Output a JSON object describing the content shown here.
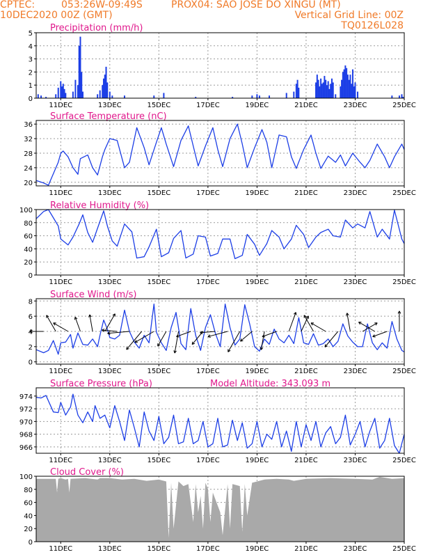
{
  "header": {
    "line1_left": "CPTEC:",
    "coords": "053:26W-09:49S",
    "location": "PROX04: SAO JOSE DO XINGU (MT)",
    "datetime": "10DEC2020 00Z (GMT)",
    "grid_note": "Vertical Grid Line: 00Z",
    "code": "TQ0126L028"
  },
  "colors": {
    "header": "#f07a28",
    "title": "#e0188c",
    "series": "#1c3ee6",
    "cloud": "#a9a9a9",
    "grid": "#9a9a9a"
  },
  "x_axis": {
    "ticks": [
      "11DEC",
      "13DEC",
      "15DEC",
      "17DEC",
      "19DEC",
      "21DEC",
      "23DEC",
      "25DEC"
    ],
    "tick_days": [
      11,
      13,
      15,
      17,
      19,
      21,
      23,
      25
    ],
    "range_days": [
      10,
      25
    ]
  },
  "chart_data": [
    {
      "id": "precip",
      "type": "bar",
      "title": "Precipitation (mm/h)",
      "ylim": [
        0,
        5
      ],
      "yticks": [
        0,
        1,
        2,
        3,
        4,
        5
      ],
      "grid": true,
      "x": [
        10.08,
        10.2,
        10.4,
        10.8,
        10.9,
        11.0,
        11.05,
        11.1,
        11.15,
        11.2,
        11.5,
        11.6,
        11.7,
        11.75,
        11.8,
        11.85,
        11.9,
        12.5,
        12.6,
        12.7,
        12.75,
        12.8,
        12.85,
        12.9,
        13.0,
        13.1,
        13.6,
        14.8,
        15.2,
        16.5,
        18.0,
        18.8,
        19.0,
        19.1,
        19.5,
        20.2,
        20.5,
        20.6,
        20.65,
        20.7,
        21.4,
        21.45,
        21.5,
        21.55,
        21.6,
        21.65,
        21.7,
        21.75,
        21.8,
        21.85,
        21.9,
        21.95,
        22.0,
        22.05,
        22.1,
        22.2,
        22.4,
        22.45,
        22.5,
        22.55,
        22.6,
        22.65,
        22.7,
        22.75,
        22.8,
        22.85,
        22.9,
        22.95,
        23.0,
        23.1,
        24.5,
        24.8,
        24.9,
        24.95
      ],
      "values": [
        0.3,
        0.2,
        0.1,
        0.3,
        0.8,
        1.3,
        0.9,
        1.1,
        0.7,
        0.4,
        0.5,
        1.4,
        1.0,
        4.0,
        4.7,
        2.0,
        0.5,
        0.3,
        0.6,
        1.0,
        1.5,
        1.8,
        2.4,
        1.2,
        0.5,
        0.2,
        0.2,
        0.2,
        0.4,
        0.1,
        0.1,
        0.2,
        0.3,
        0.2,
        0.2,
        0.4,
        0.5,
        1.1,
        1.4,
        0.8,
        1.2,
        1.8,
        1.4,
        0.9,
        1.5,
        1.1,
        1.2,
        1.7,
        1.4,
        1.0,
        1.3,
        0.7,
        1.1,
        1.5,
        1.2,
        0.3,
        0.9,
        1.4,
        2.0,
        2.2,
        2.5,
        2.3,
        1.8,
        1.4,
        1.8,
        1.1,
        2.2,
        0.9,
        1.2,
        0.5,
        0.2,
        0.2,
        0.3,
        0.1
      ]
    },
    {
      "id": "temp",
      "type": "line",
      "title": "Surface Temperature (nC)",
      "ylim": [
        19,
        37
      ],
      "yticks": [
        20,
        24,
        28,
        32,
        36
      ],
      "grid": true,
      "x": [
        10.0,
        10.3,
        10.5,
        10.9,
        11.0,
        11.1,
        11.3,
        11.5,
        11.7,
        11.75,
        11.8,
        12.1,
        12.3,
        12.5,
        12.7,
        12.8,
        13.0,
        13.3,
        13.6,
        13.8,
        14.1,
        14.4,
        14.6,
        14.9,
        15.1,
        15.3,
        15.6,
        15.9,
        16.2,
        16.4,
        16.6,
        16.9,
        17.2,
        17.4,
        17.6,
        17.9,
        18.2,
        18.4,
        18.6,
        18.9,
        19.2,
        19.4,
        19.6,
        19.9,
        20.2,
        20.4,
        20.6,
        20.9,
        21.2,
        21.4,
        21.6,
        21.9,
        22.2,
        22.4,
        22.6,
        22.9,
        23.2,
        23.4,
        23.6,
        23.9,
        24.2,
        24.4,
        24.6,
        24.9,
        25.0
      ],
      "values": [
        20.5,
        19.8,
        19.2,
        25.5,
        28.0,
        28.6,
        27.0,
        24.0,
        22.2,
        24.5,
        26.5,
        27.5,
        24.0,
        22.0,
        27.0,
        29.0,
        32.0,
        31.5,
        24.0,
        25.5,
        35.0,
        29.5,
        24.8,
        31.0,
        35.0,
        30.5,
        24.3,
        31.5,
        35.5,
        30.0,
        24.5,
        30.0,
        35.0,
        29.0,
        24.3,
        32.0,
        36.0,
        30.5,
        24.0,
        29.5,
        34.5,
        31.0,
        24.0,
        33.0,
        32.5,
        27.0,
        23.8,
        29.0,
        33.0,
        28.0,
        23.8,
        27.2,
        25.5,
        27.5,
        24.5,
        28.0,
        25.5,
        24.0,
        26.0,
        30.5,
        27.0,
        24.0,
        27.0,
        30.5,
        29.0
      ]
    },
    {
      "id": "rh",
      "type": "line",
      "title": "Relative Humidity (%)",
      "ylim": [
        0,
        100
      ],
      "yticks": [
        0,
        20,
        40,
        60,
        80,
        100
      ],
      "grid": true,
      "x": [
        10.0,
        10.3,
        10.5,
        10.9,
        11.0,
        11.3,
        11.5,
        11.75,
        11.9,
        12.1,
        12.3,
        12.6,
        12.75,
        12.9,
        13.1,
        13.3,
        13.6,
        13.9,
        14.1,
        14.4,
        14.6,
        14.9,
        15.1,
        15.4,
        15.6,
        15.9,
        16.1,
        16.4,
        16.6,
        16.9,
        17.1,
        17.4,
        17.6,
        17.9,
        18.1,
        18.4,
        18.6,
        18.9,
        19.1,
        19.4,
        19.6,
        19.9,
        20.1,
        20.4,
        20.6,
        20.9,
        21.1,
        21.4,
        21.6,
        21.9,
        22.1,
        22.4,
        22.6,
        22.9,
        23.1,
        23.4,
        23.6,
        23.9,
        24.1,
        24.4,
        24.6,
        24.9,
        25.0
      ],
      "values": [
        86,
        97,
        100,
        75,
        55,
        46,
        58,
        78,
        92,
        65,
        50,
        82,
        98,
        75,
        52,
        44,
        78,
        66,
        26,
        28,
        43,
        70,
        28,
        34,
        56,
        68,
        26,
        32,
        60,
        58,
        29,
        33,
        55,
        55,
        25,
        30,
        62,
        47,
        30,
        48,
        68,
        58,
        40,
        55,
        76,
        62,
        42,
        58,
        65,
        70,
        60,
        58,
        84,
        72,
        78,
        72,
        97,
        58,
        70,
        55,
        99,
        55,
        48
      ]
    },
    {
      "id": "wind",
      "type": "line",
      "title": "Surface Wind (m/s)",
      "ylim": [
        -0.3,
        8.3
      ],
      "yticks": [
        0,
        2,
        4,
        6,
        8
      ],
      "grid": true,
      "x": [
        10.0,
        10.3,
        10.5,
        10.7,
        10.9,
        11.0,
        11.2,
        11.4,
        11.5,
        11.7,
        11.9,
        12.1,
        12.3,
        12.5,
        12.6,
        12.75,
        12.9,
        13.0,
        13.2,
        13.4,
        13.6,
        13.8,
        14.0,
        14.2,
        14.4,
        14.6,
        14.8,
        14.9,
        15.1,
        15.3,
        15.5,
        15.7,
        15.9,
        16.1,
        16.3,
        16.5,
        16.7,
        16.9,
        17.1,
        17.3,
        17.5,
        17.7,
        17.9,
        18.1,
        18.3,
        18.5,
        18.7,
        18.9,
        19.1,
        19.3,
        19.5,
        19.7,
        19.9,
        20.1,
        20.3,
        20.5,
        20.7,
        20.9,
        21.1,
        21.3,
        21.5,
        21.7,
        21.9,
        22.1,
        22.3,
        22.5,
        22.7,
        22.9,
        23.1,
        23.3,
        23.5,
        23.7,
        23.9,
        24.1,
        24.3,
        24.5,
        24.7,
        24.9,
        25.0
      ],
      "values": [
        1.6,
        1.2,
        1.5,
        2.8,
        1.0,
        2.5,
        2.6,
        3.6,
        1.8,
        3.8,
        2.3,
        2.2,
        3.0,
        2.0,
        3.5,
        5.5,
        4.3,
        3.2,
        3.0,
        3.5,
        6.8,
        4.0,
        2.6,
        1.8,
        3.5,
        2.5,
        7.6,
        3.9,
        2.5,
        1.5,
        4.5,
        6.5,
        2.4,
        1.6,
        7.0,
        3.5,
        1.5,
        4.5,
        6.2,
        3.8,
        2.0,
        7.6,
        4.5,
        2.2,
        3.0,
        7.5,
        5.0,
        2.0,
        1.4,
        3.0,
        2.3,
        4.3,
        3.0,
        2.5,
        3.5,
        2.4,
        5.8,
        2.5,
        2.3,
        3.7,
        2.2,
        2.4,
        3.0,
        2.0,
        2.7,
        5.0,
        3.4,
        2.6,
        2.0,
        2.0,
        5.0,
        2.5,
        1.6,
        2.5,
        1.8,
        5.3,
        3.0,
        1.5,
        1.3
      ],
      "arrow_times": [
        10.3,
        10.8,
        11.3,
        11.8,
        12.3,
        12.8,
        13.3,
        13.8,
        14.3,
        14.8,
        15.3,
        15.8,
        16.3,
        16.8,
        17.3,
        17.8,
        18.3,
        18.8,
        19.3,
        19.8,
        20.3,
        20.8,
        21.3,
        21.8,
        22.3,
        22.8,
        23.3,
        23.8,
        24.3,
        24.8
      ],
      "arrow_dirs_deg": [
        180,
        120,
        150,
        110,
        100,
        60,
        175,
        185,
        230,
        210,
        240,
        260,
        200,
        230,
        185,
        195,
        240,
        220,
        260,
        200,
        70,
        65,
        120,
        150,
        230,
        100,
        30,
        150,
        200,
        90
      ],
      "arrow_lengths": [
        0.4,
        0.7,
        0.6,
        0.5,
        0.6,
        0.8,
        0.5,
        0.9,
        1.0,
        0.9,
        0.6,
        0.9,
        0.5,
        0.6,
        0.5,
        0.8,
        1.0,
        0.5,
        0.7,
        0.5,
        0.8,
        0.6,
        0.7,
        0.6,
        0.8,
        0.7,
        0.6,
        0.7,
        0.5,
        0.8
      ]
    },
    {
      "id": "press",
      "type": "line",
      "title": "Surface Pressure (hPa)",
      "annotation": "Model Altitude: 343.093 m",
      "ylim": [
        965.0,
        975.3
      ],
      "yticks": [
        966,
        968,
        970,
        972,
        974
      ],
      "grid": true,
      "x": [
        10.0,
        10.2,
        10.4,
        10.7,
        10.9,
        11.0,
        11.2,
        11.4,
        11.5,
        11.7,
        11.9,
        12.1,
        12.3,
        12.4,
        12.6,
        12.8,
        13.0,
        13.2,
        13.4,
        13.6,
        13.8,
        14.0,
        14.2,
        14.4,
        14.6,
        14.8,
        15.0,
        15.2,
        15.4,
        15.6,
        15.8,
        16.0,
        16.2,
        16.4,
        16.6,
        16.8,
        17.0,
        17.2,
        17.4,
        17.6,
        17.8,
        18.0,
        18.2,
        18.4,
        18.6,
        18.8,
        19.0,
        19.2,
        19.4,
        19.6,
        19.8,
        20.0,
        20.2,
        20.4,
        20.6,
        20.8,
        21.0,
        21.2,
        21.4,
        21.6,
        21.8,
        22.0,
        22.2,
        22.4,
        22.6,
        22.8,
        23.0,
        23.2,
        23.4,
        23.6,
        23.8,
        24.0,
        24.2,
        24.4,
        24.6,
        24.8,
        25.0
      ],
      "values": [
        973.8,
        973.7,
        974.1,
        971.5,
        971.4,
        973.0,
        971.0,
        972.3,
        974.3,
        971.0,
        969.8,
        971.5,
        970.0,
        972.5,
        970.5,
        971.0,
        969.0,
        972.5,
        970.0,
        967.0,
        971.8,
        969.0,
        966.0,
        971.5,
        968.5,
        967.0,
        970.8,
        966.5,
        967.5,
        971.0,
        966.5,
        966.8,
        970.5,
        966.5,
        967.0,
        970.0,
        966.0,
        966.5,
        970.5,
        966.0,
        966.3,
        970.2,
        967.0,
        969.8,
        965.8,
        966.5,
        970.0,
        966.0,
        968.0,
        967.2,
        970.0,
        966.0,
        968.5,
        965.3,
        970.0,
        966.0,
        969.5,
        967.0,
        970.0,
        966.0,
        968.2,
        969.2,
        966.5,
        967.5,
        971.0,
        966.3,
        968.0,
        970.0,
        966.0,
        968.5,
        970.5,
        965.8,
        967.0,
        970.5,
        966.2,
        965.0,
        968.0
      ]
    },
    {
      "id": "cloud",
      "type": "area",
      "title": "Cloud Cover (%)",
      "ylim": [
        0,
        100
      ],
      "yticks": [
        0,
        20,
        40,
        60,
        80,
        100
      ],
      "grid": true,
      "x": [
        10.0,
        10.8,
        10.85,
        10.9,
        11.0,
        11.2,
        11.3,
        11.35,
        11.4,
        12.0,
        12.5,
        12.6,
        13.0,
        13.5,
        14.0,
        14.5,
        15.0,
        15.3,
        15.4,
        15.5,
        15.6,
        15.8,
        16.0,
        16.2,
        16.4,
        16.5,
        16.6,
        16.7,
        16.8,
        16.9,
        17.0,
        17.1,
        17.2,
        17.5,
        17.6,
        17.8,
        17.9,
        18.0,
        18.3,
        18.4,
        18.5,
        18.6,
        18.8,
        19.0,
        19.3,
        19.8,
        20.3,
        20.5,
        21.0,
        22.0,
        23.0,
        23.7,
        24.0,
        24.5,
        25.0
      ],
      "values": [
        96,
        96,
        75,
        96,
        97,
        95,
        96,
        75,
        96,
        97,
        95,
        97,
        97,
        95,
        96,
        93,
        95,
        92,
        6,
        90,
        20,
        92,
        85,
        88,
        30,
        88,
        45,
        70,
        20,
        90,
        80,
        30,
        75,
        45,
        10,
        88,
        20,
        88,
        85,
        15,
        88,
        40,
        90,
        92,
        95,
        96,
        95,
        93,
        96,
        97,
        96,
        95,
        99,
        96,
        97
      ]
    }
  ]
}
